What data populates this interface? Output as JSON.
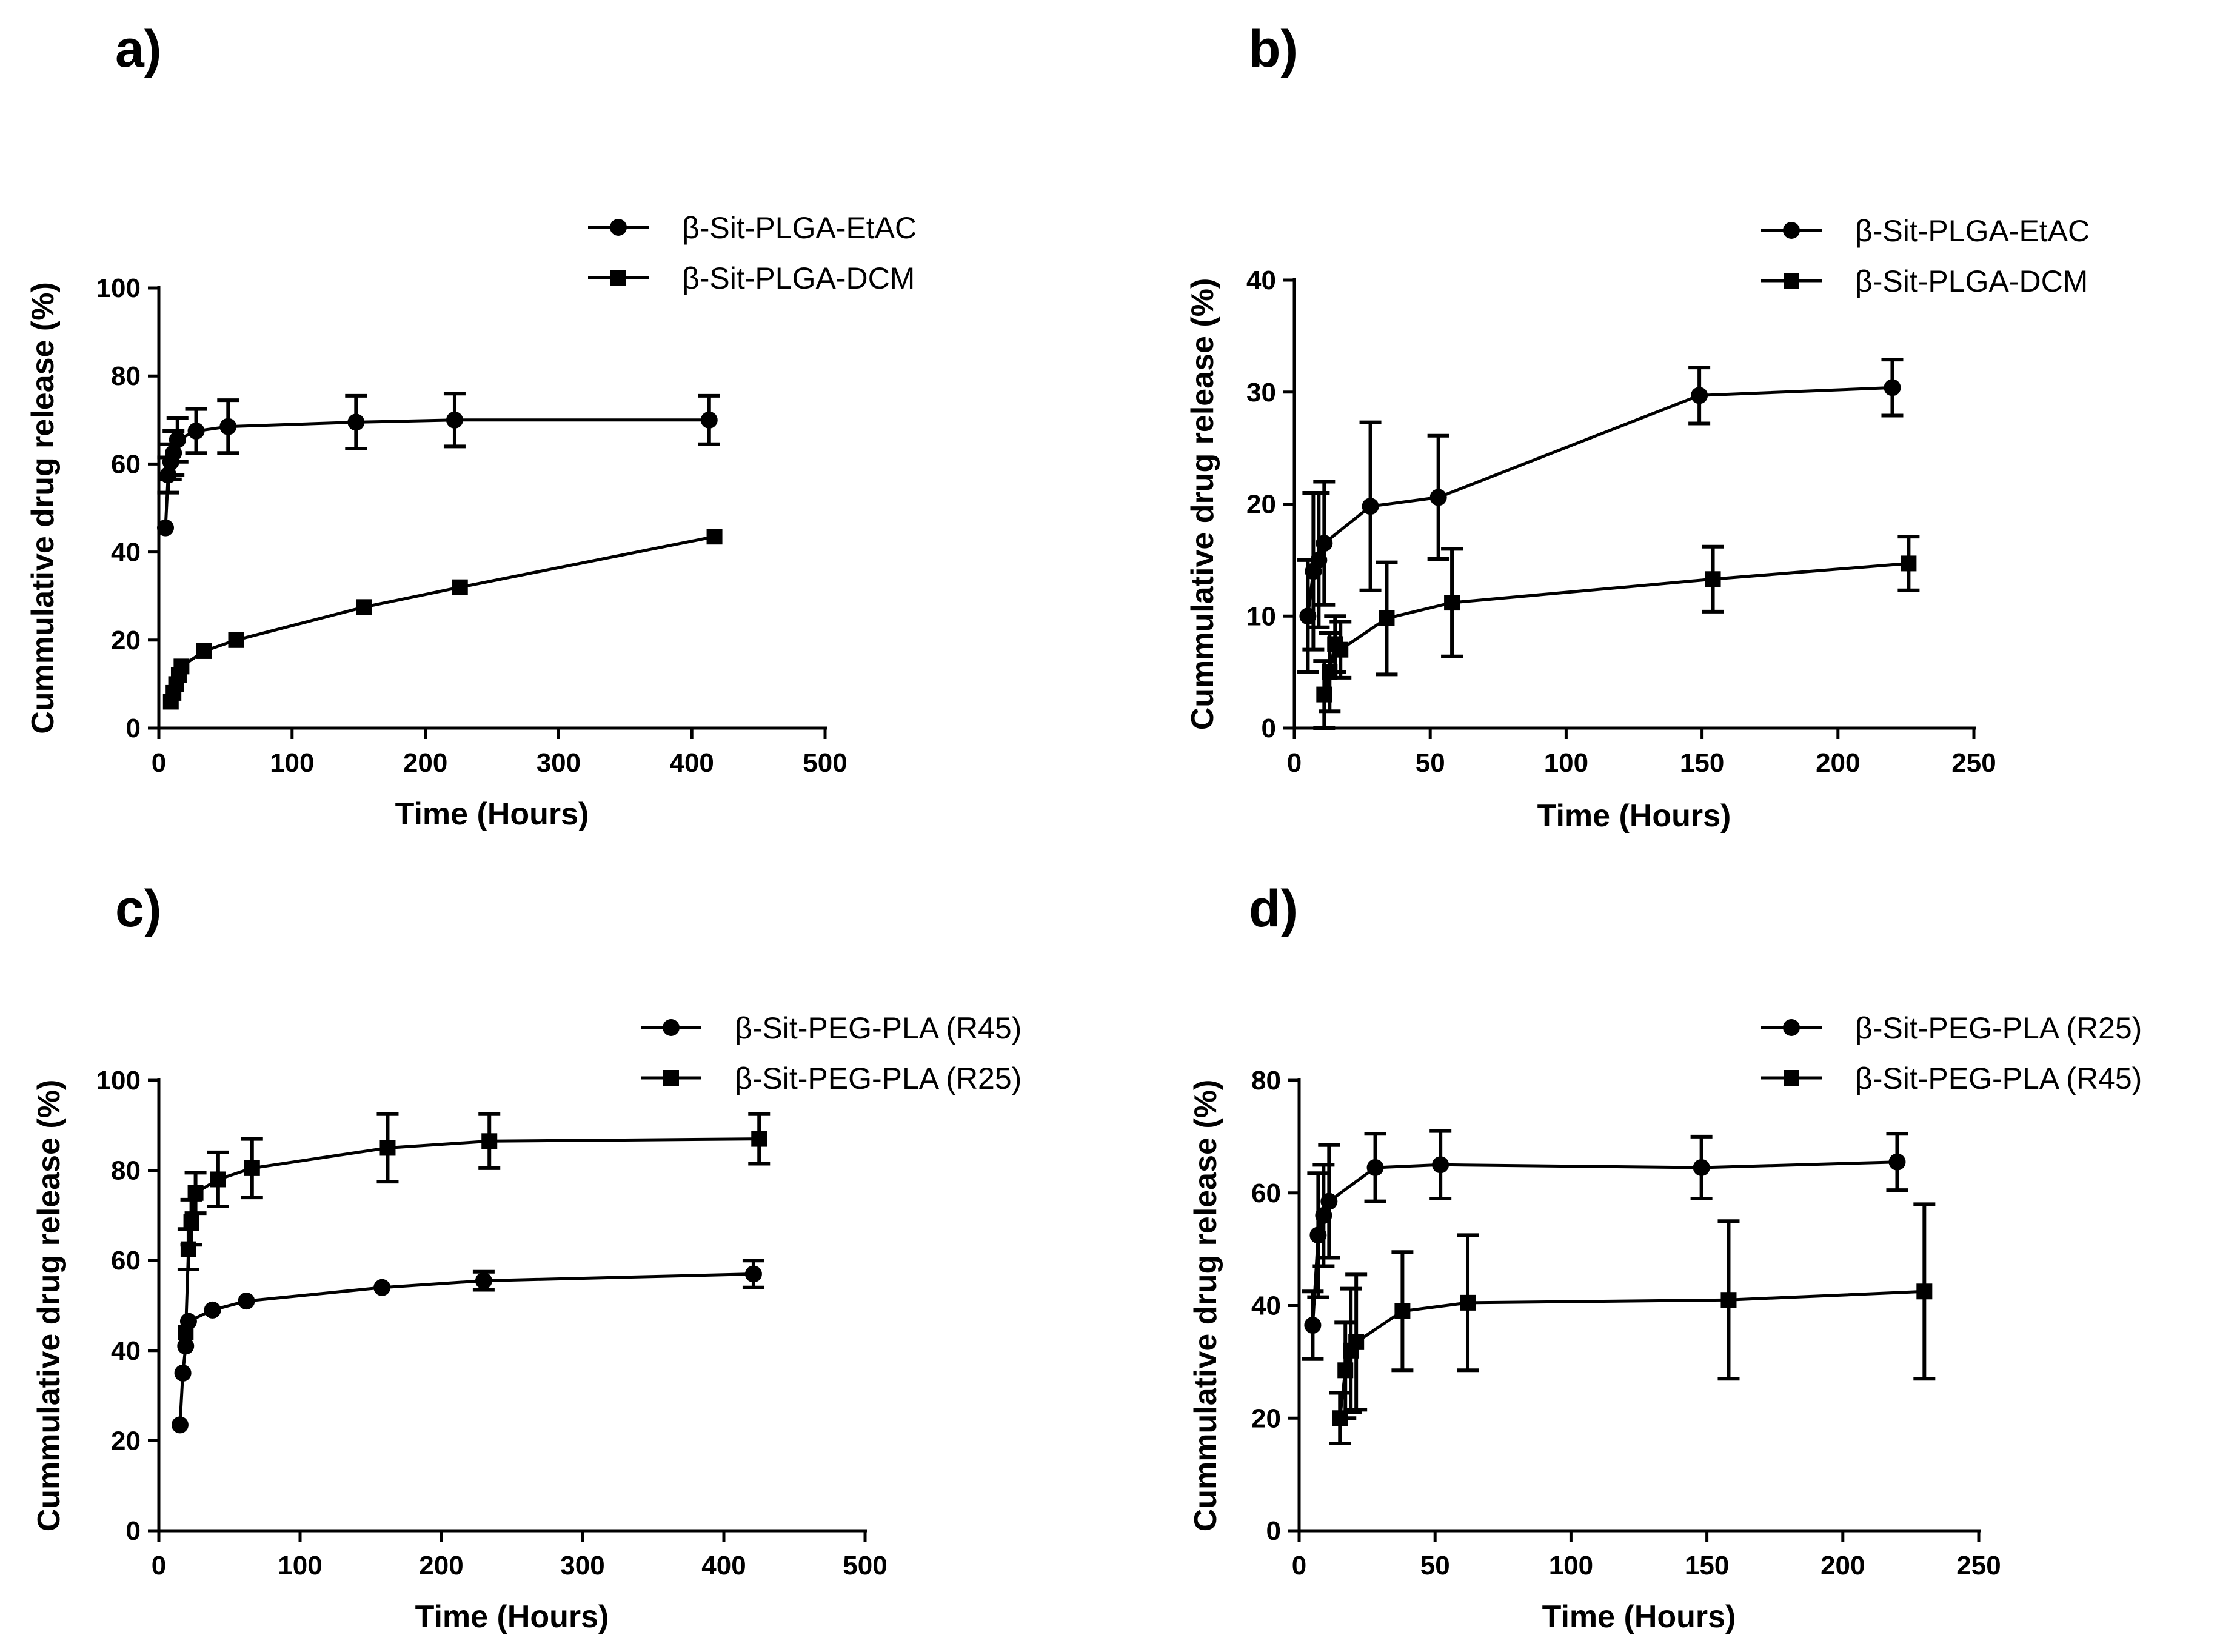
{
  "chart_data": [
    {
      "panel": "a)",
      "type": "line",
      "xlabel": "Time (Hours)",
      "ylabel": "Cummulative drug release (%)",
      "xlim": [
        0,
        500
      ],
      "ylim": [
        0,
        100
      ],
      "xticks": [
        0,
        100,
        200,
        300,
        400,
        500
      ],
      "yticks": [
        0,
        20,
        40,
        60,
        80,
        100
      ],
      "series": [
        {
          "name": "β-Sit-PLGA-EtAC",
          "marker": "circle",
          "x": [
            5,
            7,
            9,
            11,
            14,
            28,
            52,
            148,
            222,
            413
          ],
          "y": [
            45.5,
            57.5,
            60.5,
            62.5,
            65.5,
            67.5,
            68.5,
            69.5,
            70,
            70
          ],
          "err": [
            0,
            4,
            4,
            5,
            5,
            5,
            6,
            6,
            6,
            5.5
          ]
        },
        {
          "name": "β-Sit-PLGA-DCM",
          "marker": "square",
          "x": [
            9,
            11,
            13,
            15,
            17,
            34,
            58,
            154,
            226,
            417
          ],
          "y": [
            6,
            8,
            10,
            12,
            14,
            17.5,
            20,
            27.5,
            32,
            43.5
          ],
          "err": [
            0,
            0,
            0,
            0,
            0,
            0,
            0,
            0,
            0,
            0
          ]
        }
      ]
    },
    {
      "panel": "b)",
      "type": "line",
      "xlabel": "Time (Hours)",
      "ylabel": "Cummulative drug release (%)",
      "xlim": [
        0,
        250
      ],
      "ylim": [
        0,
        40
      ],
      "xticks": [
        0,
        50,
        100,
        150,
        200,
        250
      ],
      "yticks": [
        0,
        10,
        20,
        30,
        40
      ],
      "series": [
        {
          "name": "β-Sit-PLGA-EtAC",
          "marker": "circle",
          "x": [
            5,
            7,
            9,
            11,
            28,
            53,
            149,
            220
          ],
          "y": [
            10,
            14,
            15,
            16.5,
            19.8,
            20.6,
            29.7,
            30.4
          ],
          "err": [
            5,
            7,
            6,
            5.5,
            7.5,
            5.5,
            2.5,
            2.5
          ]
        },
        {
          "name": "β-Sit-PLGA-DCM",
          "marker": "square",
          "x": [
            11,
            13,
            15,
            17,
            34,
            58,
            154,
            226
          ],
          "y": [
            3,
            5,
            7.5,
            7,
            9.8,
            11.2,
            13.3,
            14.7
          ],
          "err": [
            3,
            3.5,
            2.5,
            2.5,
            5,
            4.8,
            2.9,
            2.4
          ]
        }
      ]
    },
    {
      "panel": "c)",
      "type": "line",
      "xlabel": "Time (Hours)",
      "ylabel": "Cummulative drug release (%)",
      "xlim": [
        0,
        500
      ],
      "ylim": [
        0,
        100
      ],
      "xticks": [
        0,
        100,
        200,
        300,
        400,
        500
      ],
      "yticks": [
        0,
        20,
        40,
        60,
        80,
        100
      ],
      "series": [
        {
          "name": "β-Sit-PEG-PLA (R45)",
          "marker": "circle",
          "x": [
            15,
            17,
            19,
            21,
            38,
            62,
            158,
            230,
            421
          ],
          "y": [
            23.5,
            35,
            41,
            46.5,
            49,
            51,
            54,
            55.5,
            57
          ],
          "err": [
            0,
            0,
            0,
            0,
            0,
            0,
            0,
            2,
            3
          ]
        },
        {
          "name": "β-Sit-PEG-PLA (R25)",
          "marker": "square",
          "x": [
            19,
            21,
            23,
            26,
            42,
            66,
            162,
            234,
            425
          ],
          "y": [
            44,
            62.5,
            68.5,
            75,
            78,
            80.5,
            85,
            86.5,
            87
          ],
          "err": [
            0,
            4.5,
            5,
            4.5,
            6,
            6.5,
            7.5,
            6,
            5.5
          ]
        }
      ]
    },
    {
      "panel": "d)",
      "type": "line",
      "xlabel": "Time (Hours)",
      "ylabel": "Cummulative drug release (%)",
      "xlim": [
        0,
        250
      ],
      "ylim": [
        0,
        80
      ],
      "xticks": [
        0,
        50,
        100,
        150,
        200,
        250
      ],
      "yticks": [
        0,
        20,
        40,
        60,
        80
      ],
      "series": [
        {
          "name": "β-Sit-PEG-PLA (R25)",
          "marker": "circle",
          "x": [
            5,
            7,
            9,
            11,
            28,
            52,
            148,
            220
          ],
          "y": [
            36.5,
            52.5,
            56,
            58.5,
            64.5,
            65,
            64.5,
            65.5
          ],
          "err": [
            6,
            11,
            9,
            10,
            6,
            6,
            5.5,
            5
          ]
        },
        {
          "name": "β-Sit-PEG-PLA (R45)",
          "marker": "square",
          "x": [
            15,
            17,
            19,
            21,
            38,
            62,
            158,
            230
          ],
          "y": [
            20,
            28.5,
            32,
            33.5,
            39,
            40.5,
            41,
            42.5
          ],
          "err": [
            4.5,
            8.5,
            11,
            12,
            10.5,
            12,
            14,
            15.5
          ]
        }
      ]
    }
  ]
}
